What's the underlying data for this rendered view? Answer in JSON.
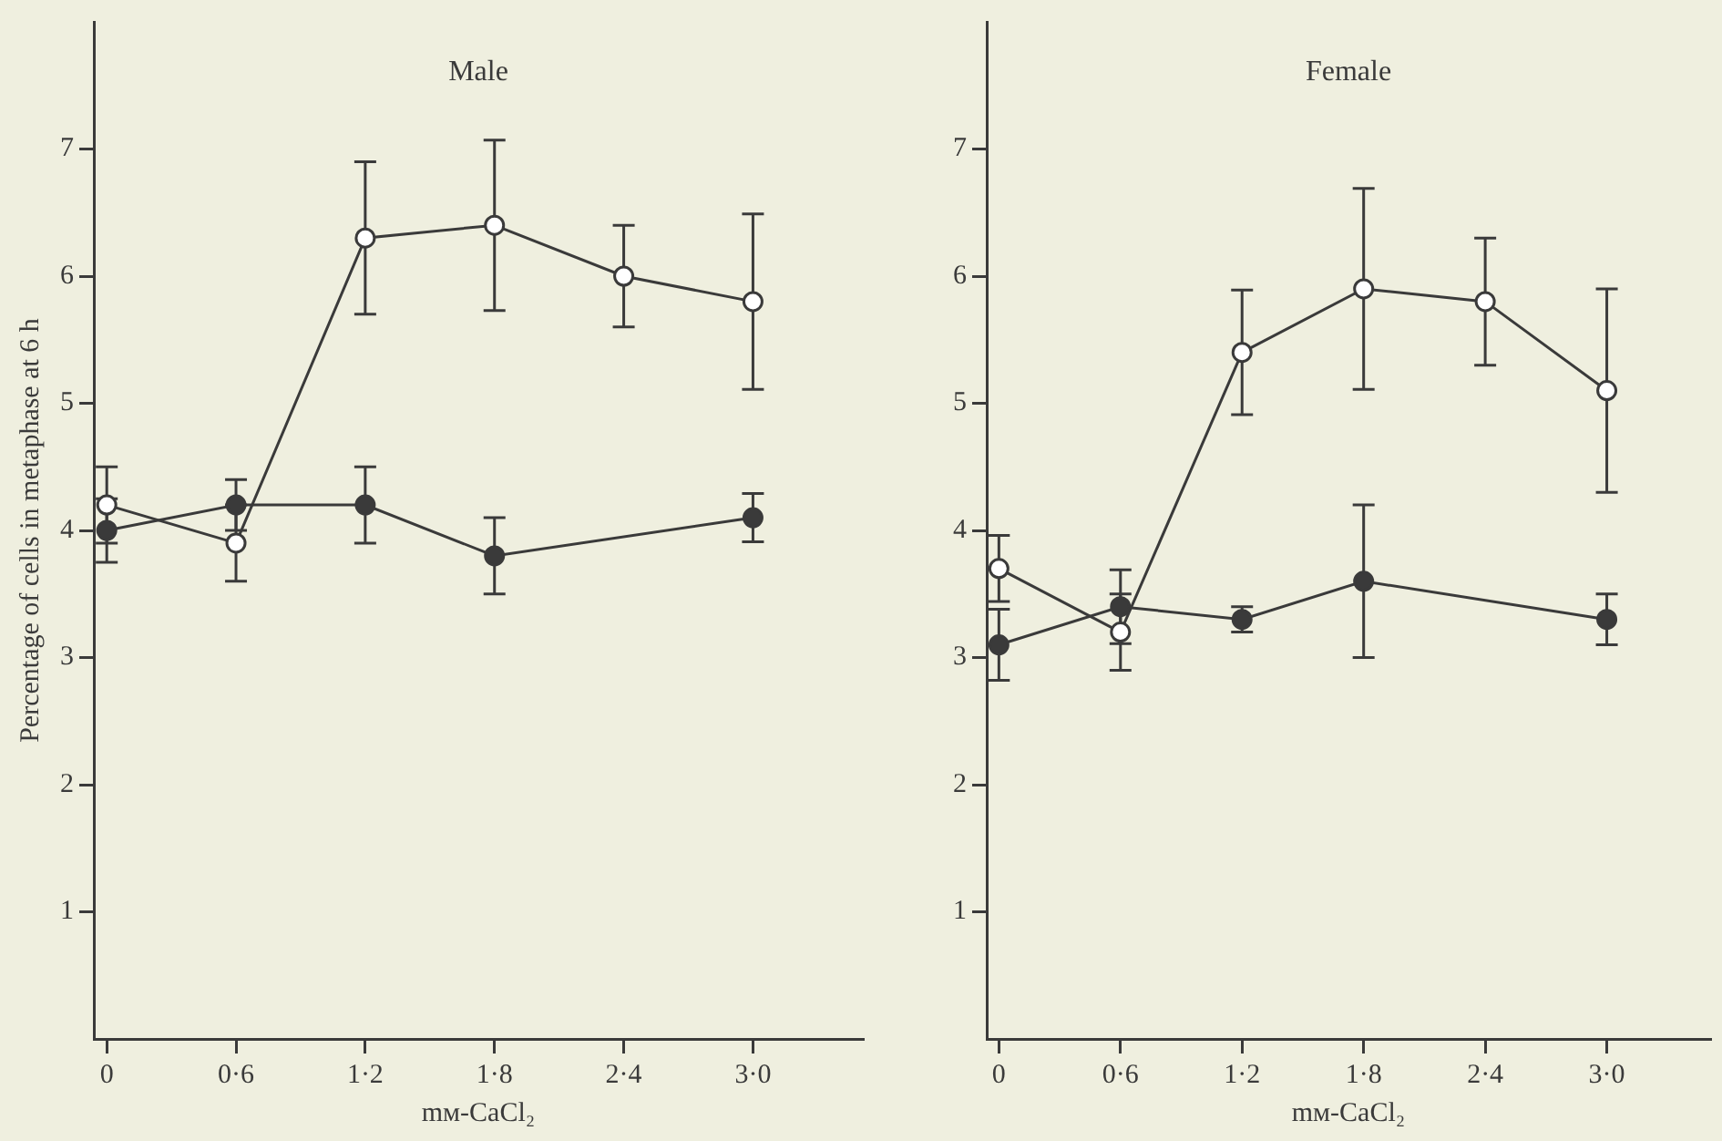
{
  "chart_data": [
    {
      "type": "line",
      "title": "Male",
      "xlabel": "mᴍ-CaCl₂",
      "ylabel": "Percentage of cells in metaphase at 6 h",
      "categories": [
        "0",
        "0·6",
        "1·2",
        "1·8",
        "2·4",
        "3·0"
      ],
      "series": [
        {
          "color": "#3a3a3a",
          "marker": "circle-open",
          "values": [
            4.2,
            3.9,
            6.3,
            6.4,
            6.0,
            5.8
          ],
          "errors": [
            0.3,
            0.3,
            0.6,
            0.67,
            0.4,
            0.69
          ]
        },
        {
          "color": "#3a3a3a",
          "marker": "circle",
          "values": [
            4.0,
            4.2,
            4.2,
            3.8,
            null,
            4.1
          ],
          "errors": [
            0.25,
            0.2,
            0.3,
            0.3,
            null,
            0.19
          ]
        }
      ],
      "ylim": [
        0,
        8
      ],
      "yticks": [
        1,
        2,
        3,
        4,
        5,
        6,
        7
      ],
      "grid": false,
      "legend": false
    },
    {
      "type": "line",
      "title": "Female",
      "xlabel": "mᴍ-CaCl₂",
      "categories": [
        "0",
        "0·6",
        "1·2",
        "1·8",
        "2·4",
        "3·0"
      ],
      "series": [
        {
          "color": "#3a3a3a",
          "marker": "circle-open",
          "values": [
            3.7,
            3.2,
            5.4,
            5.9,
            5.8,
            5.1
          ],
          "errors": [
            0.26,
            0.3,
            0.49,
            0.79,
            0.5,
            0.8
          ]
        },
        {
          "color": "#3a3a3a",
          "marker": "circle",
          "values": [
            3.1,
            3.4,
            3.3,
            3.6,
            null,
            3.3
          ],
          "errors": [
            0.28,
            0.29,
            0.1,
            0.6,
            null,
            0.2
          ]
        }
      ],
      "ylim": [
        0,
        8
      ],
      "yticks": [
        1,
        2,
        3,
        4,
        5,
        6,
        7
      ],
      "grid": false,
      "legend": false
    }
  ]
}
